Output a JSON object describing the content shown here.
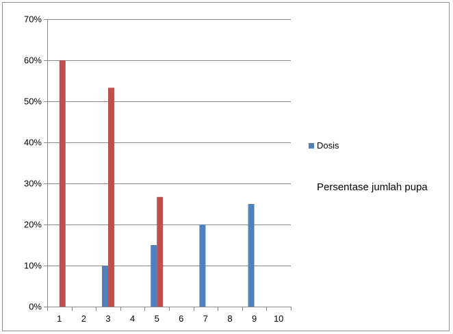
{
  "chart_data": {
    "type": "bar",
    "categories": [
      "1",
      "2",
      "3",
      "4",
      "5",
      "6",
      "7",
      "8",
      "9",
      "10"
    ],
    "series": [
      {
        "name": "Dosis",
        "color": "#4f81bd",
        "values": [
          0,
          0,
          10,
          0,
          15,
          0,
          20,
          0,
          25,
          0
        ]
      },
      {
        "color": "#c0504d",
        "values": [
          60,
          0,
          53.3,
          0,
          26.7,
          0,
          0,
          0,
          0,
          0
        ]
      }
    ],
    "yticks": [
      "0%",
      "10%",
      "20%",
      "30%",
      "40%",
      "50%",
      "60%",
      "70%"
    ],
    "ylim": [
      0,
      70
    ],
    "grid": true,
    "legend_position": "right"
  },
  "legend": {
    "label": "Dosis"
  },
  "note": "Persentase jumlah pupa"
}
